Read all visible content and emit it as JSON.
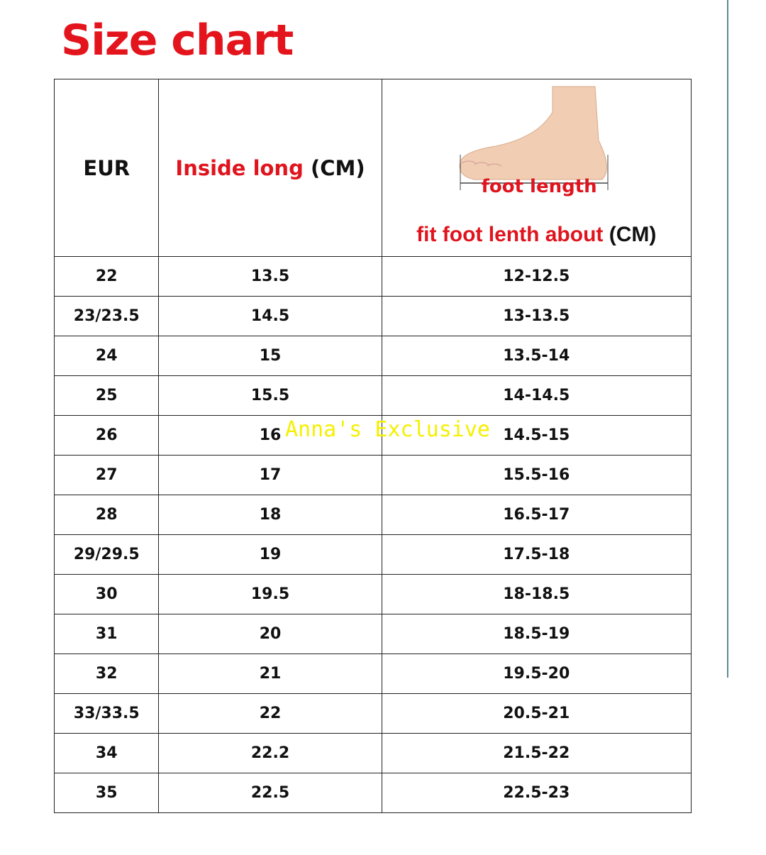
{
  "title": "Size chart",
  "header": {
    "eur": "EUR",
    "inside_long": "Inside long",
    "inside_unit": "(CM)",
    "foot_length": "foot length",
    "fit_foot": "fit foot lenth about",
    "fit_unit": "(CM)"
  },
  "watermark": "Anna's Exclusive",
  "colors": {
    "accent_red": "#e0141e",
    "watermark": "#f5f000"
  },
  "rows": [
    {
      "eur": "22",
      "inside": "13.5",
      "fit": "12-12.5"
    },
    {
      "eur": "23/23.5",
      "inside": "14.5",
      "fit": "13-13.5"
    },
    {
      "eur": "24",
      "inside": "15",
      "fit": "13.5-14"
    },
    {
      "eur": "25",
      "inside": "15.5",
      "fit": "14-14.5"
    },
    {
      "eur": "26",
      "inside": "16",
      "fit": "14.5-15"
    },
    {
      "eur": "27",
      "inside": "17",
      "fit": "15.5-16"
    },
    {
      "eur": "28",
      "inside": "18",
      "fit": "16.5-17"
    },
    {
      "eur": "29/29.5",
      "inside": "19",
      "fit": "17.5-18"
    },
    {
      "eur": "30",
      "inside": "19.5",
      "fit": "18-18.5"
    },
    {
      "eur": "31",
      "inside": "20",
      "fit": "18.5-19"
    },
    {
      "eur": "32",
      "inside": "21",
      "fit": "19.5-20"
    },
    {
      "eur": "33/33.5",
      "inside": "22",
      "fit": "20.5-21"
    },
    {
      "eur": "34",
      "inside": "22.2",
      "fit": "21.5-22"
    },
    {
      "eur": "35",
      "inside": "22.5",
      "fit": "22.5-23"
    }
  ]
}
